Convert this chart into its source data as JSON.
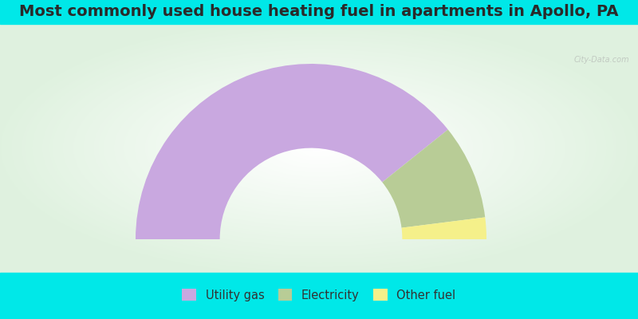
{
  "title": "Most commonly used house heating fuel in apartments in Apollo, PA",
  "segments": [
    {
      "label": "Utility gas",
      "value": 78.5,
      "color": "#c9a8e0"
    },
    {
      "label": "Electricity",
      "value": 17.5,
      "color": "#b8cc96"
    },
    {
      "label": "Other fuel",
      "value": 4.0,
      "color": "#f5f08a"
    }
  ],
  "background_color": "#00e8e8",
  "title_color": "#2a2a2a",
  "title_fontsize": 14,
  "legend_fontsize": 10.5,
  "outer_r": 1.0,
  "inner_r": 0.52
}
